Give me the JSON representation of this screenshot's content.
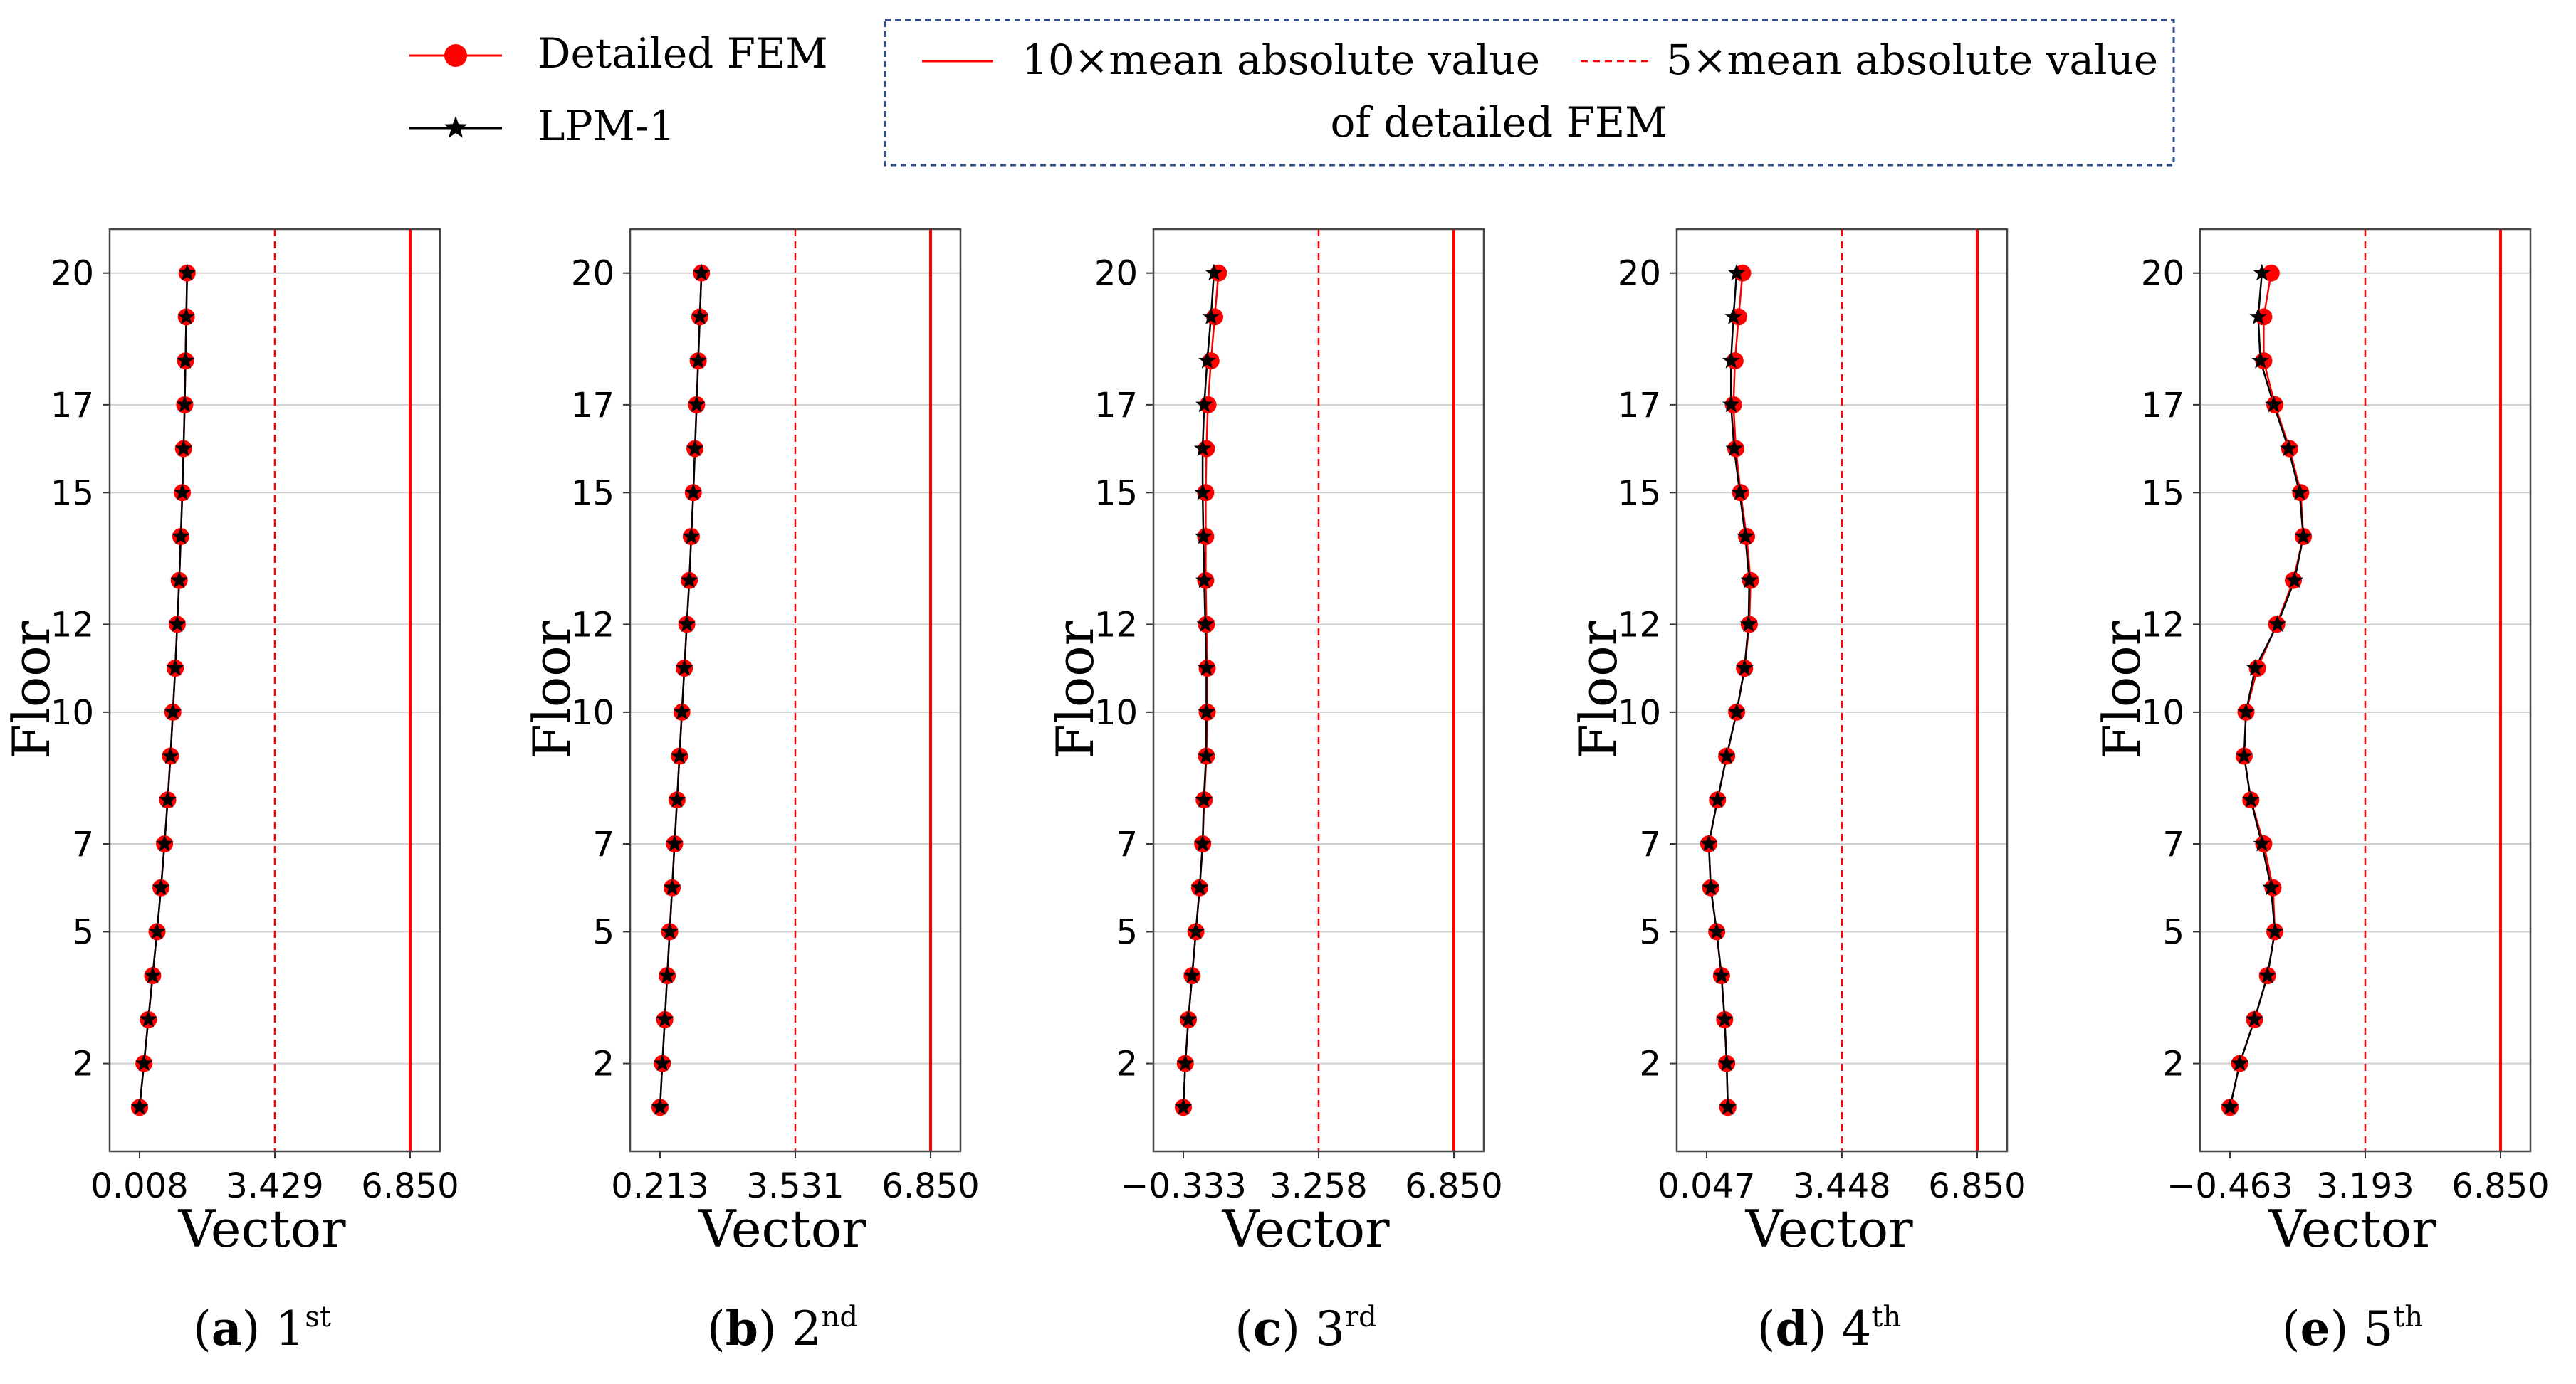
{
  "legend": {
    "series": [
      {
        "label": "Detailed FEM",
        "color": "#ff0000",
        "marker": "circle"
      },
      {
        "label": "LPM-1",
        "color": "#000000",
        "marker": "star"
      }
    ],
    "lines": [
      {
        "label": "10×mean absolute value",
        "style": "solid",
        "color": "#ff0000"
      },
      {
        "label": "5×mean absolute value",
        "style": "dashed",
        "color": "#ff0000"
      }
    ],
    "lines_caption": "of detailed FEM",
    "box_border_color": "#2f4f8f"
  },
  "chart_data": [
    {
      "type": "line",
      "panel_letter": "a",
      "panel_order": "1",
      "panel_suffix": "st",
      "xlabel": "Vector",
      "ylabel": "Floor",
      "xlim": [
        0.008,
        6.85
      ],
      "ylim": [
        0,
        21
      ],
      "xticks": [
        0.008,
        3.429,
        6.85
      ],
      "xtick_labels": [
        "0.008",
        "3.429",
        "6.850"
      ],
      "yticks": [
        2,
        5,
        7,
        10,
        12,
        15,
        17,
        20
      ],
      "ytick_labels": [
        "2",
        "5",
        "7",
        "10",
        "12",
        "15",
        "17",
        "20"
      ],
      "ref_lines": {
        "ten_x": 6.85,
        "five_x": 3.429
      },
      "floors": [
        1,
        2,
        3,
        4,
        5,
        6,
        7,
        8,
        9,
        10,
        11,
        12,
        13,
        14,
        15,
        16,
        17,
        18,
        19,
        20
      ],
      "series": [
        {
          "name": "Detailed FEM",
          "values": [
            0.008,
            0.12,
            0.23,
            0.34,
            0.45,
            0.55,
            0.64,
            0.72,
            0.79,
            0.85,
            0.91,
            0.96,
            1.01,
            1.05,
            1.09,
            1.12,
            1.15,
            1.17,
            1.19,
            1.21
          ]
        },
        {
          "name": "LPM-1",
          "values": [
            0.008,
            0.12,
            0.23,
            0.34,
            0.45,
            0.55,
            0.64,
            0.72,
            0.79,
            0.85,
            0.91,
            0.96,
            1.01,
            1.05,
            1.09,
            1.12,
            1.15,
            1.17,
            1.19,
            1.21
          ]
        }
      ]
    },
    {
      "type": "line",
      "panel_letter": "b",
      "panel_order": "2",
      "panel_suffix": "nd",
      "xlabel": "Vector",
      "ylabel": "Floor",
      "xlim": [
        0.213,
        6.85
      ],
      "ylim": [
        0,
        21
      ],
      "xticks": [
        0.213,
        3.531,
        6.85
      ],
      "xtick_labels": [
        "0.213",
        "3.531",
        "6.850"
      ],
      "yticks": [
        2,
        5,
        7,
        10,
        12,
        15,
        17,
        20
      ],
      "ytick_labels": [
        "2",
        "5",
        "7",
        "10",
        "12",
        "15",
        "17",
        "20"
      ],
      "ref_lines": {
        "ten_x": 6.85,
        "five_x": 3.531
      },
      "floors": [
        1,
        2,
        3,
        4,
        5,
        6,
        7,
        8,
        9,
        10,
        11,
        12,
        13,
        14,
        15,
        16,
        17,
        18,
        19,
        20
      ],
      "series": [
        {
          "name": "Detailed FEM",
          "values": [
            0.213,
            0.27,
            0.33,
            0.39,
            0.45,
            0.51,
            0.57,
            0.63,
            0.69,
            0.75,
            0.81,
            0.87,
            0.93,
            0.98,
            1.03,
            1.07,
            1.11,
            1.15,
            1.19,
            1.23
          ]
        },
        {
          "name": "LPM-1",
          "values": [
            0.213,
            0.27,
            0.33,
            0.39,
            0.45,
            0.51,
            0.57,
            0.63,
            0.69,
            0.75,
            0.81,
            0.87,
            0.93,
            0.98,
            1.03,
            1.07,
            1.11,
            1.15,
            1.19,
            1.23
          ]
        }
      ]
    },
    {
      "type": "line",
      "panel_letter": "c",
      "panel_order": "3",
      "panel_suffix": "rd",
      "xlabel": "Vector",
      "ylabel": "Floor",
      "xlim": [
        -0.333,
        6.85
      ],
      "ylim": [
        0,
        21
      ],
      "xticks": [
        -0.333,
        3.258,
        6.85
      ],
      "xtick_labels": [
        "−0.333",
        "3.258",
        "6.850"
      ],
      "yticks": [
        2,
        5,
        7,
        10,
        12,
        15,
        17,
        20
      ],
      "ytick_labels": [
        "2",
        "5",
        "7",
        "10",
        "12",
        "15",
        "17",
        "20"
      ],
      "ref_lines": {
        "ten_x": 6.85,
        "five_x": 3.258
      },
      "floors": [
        1,
        2,
        3,
        4,
        5,
        6,
        7,
        8,
        9,
        10,
        11,
        12,
        13,
        14,
        15,
        16,
        17,
        18,
        19,
        20
      ],
      "series": [
        {
          "name": "Detailed FEM",
          "values": [
            -0.333,
            -0.28,
            -0.2,
            -0.1,
            0.0,
            0.1,
            0.18,
            0.22,
            0.28,
            0.3,
            0.3,
            0.28,
            0.26,
            0.26,
            0.26,
            0.28,
            0.32,
            0.4,
            0.5,
            0.6
          ]
        },
        {
          "name": "LPM-1",
          "values": [
            -0.333,
            -0.28,
            -0.2,
            -0.1,
            0.0,
            0.1,
            0.18,
            0.21,
            0.27,
            0.28,
            0.28,
            0.25,
            0.22,
            0.2,
            0.18,
            0.18,
            0.22,
            0.3,
            0.4,
            0.48
          ]
        }
      ]
    },
    {
      "type": "line",
      "panel_letter": "d",
      "panel_order": "4",
      "panel_suffix": "th",
      "xlabel": "Vector",
      "ylabel": "Floor",
      "xlim": [
        0.047,
        6.85
      ],
      "ylim": [
        0,
        21
      ],
      "xticks": [
        0.047,
        3.448,
        6.85
      ],
      "xtick_labels": [
        "0.047",
        "3.448",
        "6.850"
      ],
      "yticks": [
        2,
        5,
        7,
        10,
        12,
        15,
        17,
        20
      ],
      "ytick_labels": [
        "2",
        "5",
        "7",
        "10",
        "12",
        "15",
        "17",
        "20"
      ],
      "ref_lines": {
        "ten_x": 6.85,
        "five_x": 3.448
      },
      "floors": [
        1,
        2,
        3,
        4,
        5,
        6,
        7,
        8,
        9,
        10,
        11,
        12,
        13,
        14,
        15,
        16,
        17,
        18,
        19,
        20
      ],
      "series": [
        {
          "name": "Detailed FEM",
          "values": [
            0.58,
            0.55,
            0.5,
            0.42,
            0.3,
            0.15,
            0.1,
            0.32,
            0.55,
            0.8,
            1.0,
            1.12,
            1.15,
            1.05,
            0.9,
            0.78,
            0.72,
            0.76,
            0.85,
            0.95
          ]
        },
        {
          "name": "LPM-1",
          "values": [
            0.58,
            0.55,
            0.5,
            0.42,
            0.3,
            0.15,
            0.1,
            0.32,
            0.55,
            0.8,
            1.0,
            1.1,
            1.12,
            1.02,
            0.88,
            0.74,
            0.66,
            0.66,
            0.72,
            0.8
          ]
        }
      ]
    },
    {
      "type": "line",
      "panel_letter": "e",
      "panel_order": "5",
      "panel_suffix": "th",
      "xlabel": "Vector",
      "ylabel": "Floor",
      "xlim": [
        -0.463,
        6.85
      ],
      "ylim": [
        0,
        21
      ],
      "xticks": [
        -0.463,
        3.193,
        6.85
      ],
      "xtick_labels": [
        "−0.463",
        "3.193",
        "6.850"
      ],
      "yticks": [
        2,
        5,
        7,
        10,
        12,
        15,
        17,
        20
      ],
      "ytick_labels": [
        "2",
        "5",
        "7",
        "10",
        "12",
        "15",
        "17",
        "20"
      ],
      "ref_lines": {
        "ten_x": 6.85,
        "five_x": 3.193
      },
      "floors": [
        1,
        2,
        3,
        4,
        5,
        6,
        7,
        8,
        9,
        10,
        11,
        12,
        13,
        14,
        15,
        16,
        17,
        18,
        19,
        20
      ],
      "series": [
        {
          "name": "Detailed FEM",
          "values": [
            -0.463,
            -0.2,
            0.2,
            0.55,
            0.75,
            0.7,
            0.45,
            0.1,
            -0.08,
            -0.03,
            0.28,
            0.8,
            1.25,
            1.52,
            1.45,
            1.15,
            0.75,
            0.45,
            0.45,
            0.65
          ]
        },
        {
          "name": "LPM-1",
          "values": [
            -0.463,
            -0.2,
            0.2,
            0.55,
            0.75,
            0.65,
            0.4,
            0.1,
            -0.08,
            -0.03,
            0.22,
            0.82,
            1.28,
            1.52,
            1.42,
            1.12,
            0.72,
            0.36,
            0.3,
            0.4
          ]
        }
      ]
    }
  ]
}
